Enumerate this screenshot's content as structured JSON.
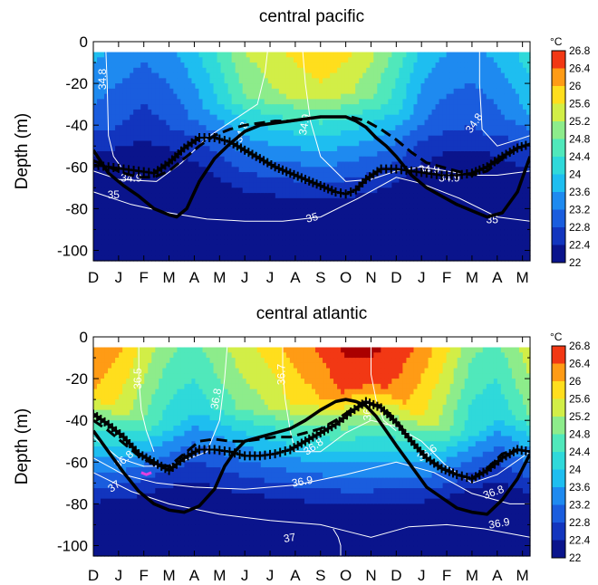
{
  "chart_data": [
    {
      "type": "heatmap",
      "title": "central pacific",
      "ylabel": "Depth (m)",
      "xlabel": "",
      "x_ticks": [
        "D",
        "J",
        "F",
        "M",
        "A",
        "M",
        "J",
        "J",
        "A",
        "S",
        "O",
        "N",
        "D",
        "J",
        "F",
        "M",
        "A",
        "M"
      ],
      "y_ticks": [
        "0",
        "-20",
        "-40",
        "-60",
        "-80",
        "-100"
      ],
      "ylim": [
        -105,
        0
      ],
      "colorbar": {
        "unit": "°C",
        "levels": [
          "26.8",
          "26.4",
          "26",
          "25.6",
          "25.2",
          "24.8",
          "24.4",
          "24",
          "23.6",
          "23.2",
          "22.8",
          "22.4",
          "22"
        ]
      },
      "temperature_profile": {
        "months": [
          0,
          1,
          2,
          3,
          4,
          5,
          6,
          7,
          8,
          9,
          10,
          11,
          12,
          13,
          14,
          15,
          16,
          17
        ],
        "surface_temp": [
          23.8,
          23.6,
          23.4,
          23.6,
          24.0,
          24.6,
          25.3,
          25.6,
          25.8,
          26.0,
          25.8,
          25.4,
          24.8,
          24.0,
          23.7,
          23.6,
          23.8,
          24.2
        ],
        "bottom_temp": 22.0
      },
      "isohalines": [
        {
          "label": "34.8",
          "x": [
            0.5,
            0.55,
            0.6,
            0.8,
            1.1
          ],
          "y": [
            -5,
            -20,
            -45,
            -55,
            -60
          ]
        },
        {
          "label": "34.8",
          "x": [
            15.3,
            15.3,
            15.4,
            16.0,
            16.8,
            17.3
          ],
          "y": [
            -5,
            -20,
            -42,
            -50,
            -47,
            -45
          ]
        },
        {
          "label": "34.9",
          "x": [
            0,
            1.0,
            2.5,
            3.5,
            4.5,
            5.5,
            6.5,
            6.8,
            6.9
          ],
          "y": [
            -62,
            -66,
            -67,
            -58,
            -46,
            -38,
            -30,
            -15,
            -5
          ]
        },
        {
          "label": "34.9",
          "x": [
            8.3,
            8.4,
            8.6,
            9.0,
            10.0,
            11.0,
            12.0,
            13.0,
            14.0,
            15.0,
            16.0,
            17.3
          ],
          "y": [
            -5,
            -20,
            -38,
            -55,
            -67,
            -66,
            -62,
            -60,
            -62,
            -64,
            -64,
            -62
          ]
        },
        {
          "label": "35",
          "x": [
            0,
            1.5,
            3.0,
            4.5,
            6.0,
            7.5,
            9.0,
            10.5,
            12.0,
            13.0,
            14.5,
            16.0,
            17.3
          ],
          "y": [
            -72,
            -78,
            -82,
            -85,
            -86,
            -86,
            -84,
            -75,
            -65,
            -68,
            -75,
            -84,
            -86
          ]
        }
      ],
      "series": [
        {
          "name": "",
          "style": "solid",
          "x": [
            0,
            0.6,
            1.2,
            1.8,
            2.4,
            3.0,
            3.3,
            3.7,
            4.2,
            4.8,
            5.4,
            6.0,
            6.6,
            7.2,
            7.8,
            8.4,
            9.0,
            9.6,
            10.0,
            10.4,
            10.8,
            11.2,
            11.6,
            12.0,
            12.6,
            13.2,
            13.8,
            14.4,
            15.0,
            15.6,
            16.2,
            16.8,
            17.3
          ],
          "y": [
            -52,
            -63,
            -69,
            -74,
            -80,
            -83,
            -84,
            -80,
            -67,
            -56,
            -49,
            -43,
            -40,
            -39,
            -38,
            -37,
            -36,
            -36,
            -36,
            -38,
            -41,
            -46,
            -50,
            -55,
            -64,
            -70,
            -74,
            -78,
            -81,
            -84,
            -82,
            -72,
            -55
          ]
        },
        {
          "name": "",
          "style": "dashed",
          "x": [
            0,
            0.6,
            1.2,
            1.8,
            2.4,
            3.0,
            3.6,
            4.2,
            4.8,
            5.4,
            6.0,
            6.6,
            7.2,
            7.8,
            8.4,
            9.0,
            9.6,
            10.2,
            10.8,
            11.4,
            12.0,
            12.6,
            13.2,
            13.8,
            14.4,
            15.0,
            15.6,
            16.2,
            16.8,
            17.3
          ],
          "y": [
            -57,
            -60,
            -63,
            -65,
            -65,
            -62,
            -56,
            -50,
            -45,
            -42,
            -40,
            -39,
            -38,
            -38,
            -37,
            -36,
            -36,
            -36,
            -38,
            -42,
            -47,
            -53,
            -58,
            -60,
            -62,
            -64,
            -62,
            -56,
            -51,
            -49
          ]
        },
        {
          "name": "",
          "style": "crosses",
          "x": [
            0,
            0.6,
            1.2,
            1.8,
            2.4,
            3.0,
            3.6,
            4.2,
            4.8,
            5.4,
            6.0,
            6.6,
            7.2,
            7.8,
            8.4,
            9.0,
            9.6,
            10.0,
            10.4,
            10.8,
            11.4,
            12.0,
            12.6,
            13.2,
            13.8,
            14.4,
            15.0,
            15.6,
            16.2,
            16.8,
            17.3
          ],
          "y": [
            -59,
            -60,
            -61,
            -62,
            -63,
            -58,
            -51,
            -46,
            -46,
            -48,
            -52,
            -56,
            -60,
            -63,
            -66,
            -69,
            -72,
            -73,
            -71,
            -66,
            -61,
            -61,
            -62,
            -63,
            -64,
            -64,
            -63,
            -60,
            -55,
            -51,
            -49
          ]
        }
      ],
      "isohaline_labels": [
        {
          "text": "34.8",
          "x": 0.5,
          "y": -18,
          "rot": -90
        },
        {
          "text": "34.8",
          "x": 6.0,
          "y": -44,
          "rot": -70
        },
        {
          "text": "34.8",
          "x": 15.2,
          "y": -40,
          "rot": -55
        },
        {
          "text": "34.9",
          "x": 8.5,
          "y": -40,
          "rot": -80
        },
        {
          "text": "34.9",
          "x": 13.3,
          "y": -63,
          "rot": 0
        },
        {
          "text": "34.9",
          "x": 14.1,
          "y": -67,
          "rot": 0
        },
        {
          "text": "34.9",
          "x": 1.5,
          "y": -67,
          "rot": 0
        },
        {
          "text": "35",
          "x": 0.8,
          "y": -75,
          "rot": 0
        },
        {
          "text": "35",
          "x": 8.7,
          "y": -86,
          "rot": -15
        },
        {
          "text": "35",
          "x": 15.8,
          "y": -87,
          "rot": 0
        }
      ]
    },
    {
      "type": "heatmap",
      "title": "central atlantic",
      "ylabel": "Depth (m)",
      "xlabel": "",
      "x_ticks": [
        "D",
        "J",
        "F",
        "M",
        "A",
        "M",
        "J",
        "J",
        "A",
        "S",
        "O",
        "N",
        "D",
        "J",
        "F",
        "M",
        "A",
        "M"
      ],
      "y_ticks": [
        "0",
        "-20",
        "-40",
        "-60",
        "-80",
        "-100"
      ],
      "ylim": [
        -105,
        0
      ],
      "colorbar": {
        "unit": "°C",
        "levels": [
          "26.8",
          "26.4",
          "26",
          "25.6",
          "25.2",
          "24.8",
          "24.4",
          "24",
          "23.6",
          "23.2",
          "22.8",
          "22.4",
          "22"
        ]
      },
      "temperature_profile": {
        "months": [
          0,
          1,
          2,
          3,
          4,
          5,
          6,
          7,
          8,
          9,
          10,
          11,
          12,
          13,
          14,
          15,
          16,
          17
        ],
        "surface_temp": [
          26.5,
          26.2,
          25.6,
          25.0,
          24.8,
          25.2,
          25.6,
          25.9,
          26.3,
          26.6,
          27.0,
          27.0,
          26.8,
          26.4,
          25.8,
          25.0,
          24.8,
          25.4
        ],
        "bottom_temp": 22.1
      },
      "isohalines": [
        {
          "label": "36.5",
          "x": [
            1.8,
            1.8,
            1.9,
            2.1,
            2.4
          ],
          "y": [
            -5,
            -20,
            -35,
            -45,
            -55
          ]
        },
        {
          "label": "36.6",
          "x": [
            11.0,
            11.0,
            11.2,
            11.5,
            12.0
          ],
          "y": [
            -5,
            -18,
            -30,
            -40,
            -45
          ]
        },
        {
          "label": "36.7",
          "x": [
            7.5,
            7.5,
            7.6,
            7.8,
            8.0
          ],
          "y": [
            -5,
            -15,
            -30,
            -45,
            -55
          ]
        },
        {
          "label": "36.8",
          "x": [
            0,
            1.0,
            2.0,
            3.0,
            4.5,
            5.0,
            5.2,
            5.3
          ],
          "y": [
            -48,
            -58,
            -62,
            -62,
            -55,
            -40,
            -20,
            -5
          ]
        },
        {
          "label": "36.8",
          "x": [
            8.0,
            9.0,
            10.0,
            11.0,
            12.0,
            13.0,
            14.0,
            15.0,
            16.0,
            17.3
          ],
          "y": [
            -55,
            -55,
            -46,
            -40,
            -43,
            -50,
            -62,
            -70,
            -66,
            -55
          ]
        },
        {
          "label": "36.9",
          "x": [
            0,
            1.2,
            2.5,
            4.0,
            6.0,
            8.0,
            10.0,
            12.0,
            13.5,
            15.0,
            16.5,
            17.3
          ],
          "y": [
            -58,
            -66,
            -70,
            -72,
            -73,
            -71,
            -66,
            -60,
            -65,
            -75,
            -80,
            -80
          ]
        },
        {
          "label": "37",
          "x": [
            0,
            1.5,
            3.0,
            5.0,
            7.0,
            9.0,
            10.0,
            11.0,
            12.5,
            14.0,
            15.5,
            17.3
          ],
          "y": [
            -65,
            -74,
            -80,
            -85,
            -88,
            -90,
            -93,
            -96,
            -91,
            -90,
            -92,
            -96
          ]
        },
        {
          "label": "37",
          "x": [
            9.5,
            9.7,
            9.8,
            9.8
          ],
          "y": [
            -92,
            -96,
            -100,
            -105
          ]
        }
      ],
      "series": [
        {
          "name": "",
          "style": "solid",
          "x": [
            0,
            0.6,
            1.2,
            1.8,
            2.4,
            3.0,
            3.6,
            4.2,
            4.8,
            5.2,
            5.6,
            6.0,
            6.6,
            7.2,
            7.8,
            8.4,
            9.0,
            9.6,
            10.0,
            10.4,
            10.8,
            11.2,
            11.6,
            12.0,
            12.6,
            13.2,
            13.8,
            14.4,
            15.0,
            15.6,
            16.2,
            16.8,
            17.3
          ],
          "y": [
            -45,
            -55,
            -65,
            -74,
            -80,
            -83,
            -84,
            -81,
            -73,
            -62,
            -55,
            -50,
            -48,
            -46,
            -44,
            -40,
            -35,
            -31,
            -30,
            -31,
            -33,
            -38,
            -45,
            -52,
            -62,
            -72,
            -77,
            -82,
            -84,
            -85,
            -78,
            -68,
            -56
          ]
        },
        {
          "name": "",
          "style": "dashed",
          "x": [
            0,
            0.6,
            1.2,
            1.8,
            2.4,
            3.0,
            3.6,
            4.2,
            4.8,
            5.4,
            6.0,
            6.6,
            7.2,
            7.8,
            8.4,
            9.0,
            9.6,
            10.2,
            10.8,
            11.4,
            12.0,
            12.6,
            13.2,
            13.8,
            14.4,
            15.0,
            15.6,
            16.2,
            16.8,
            17.3
          ],
          "y": [
            -40,
            -45,
            -51,
            -57,
            -61,
            -62,
            -56,
            -50,
            -49,
            -50,
            -50,
            -49,
            -48,
            -48,
            -46,
            -44,
            -40,
            -35,
            -32,
            -33,
            -40,
            -50,
            -58,
            -63,
            -66,
            -68,
            -63,
            -56,
            -54,
            -55
          ]
        },
        {
          "name": "",
          "style": "crosses",
          "x": [
            0,
            0.6,
            1.2,
            1.8,
            2.4,
            3.0,
            3.6,
            4.2,
            4.8,
            5.4,
            6.0,
            6.6,
            7.2,
            7.8,
            8.4,
            9.0,
            9.6,
            10.2,
            10.8,
            11.4,
            12.0,
            12.6,
            13.2,
            13.8,
            14.4,
            15.0,
            15.6,
            16.2,
            16.8,
            17.3
          ],
          "y": [
            -37,
            -42,
            -48,
            -56,
            -60,
            -64,
            -58,
            -54,
            -54,
            -55,
            -57,
            -57,
            -56,
            -54,
            -50,
            -46,
            -42,
            -36,
            -31,
            -34,
            -41,
            -50,
            -58,
            -63,
            -66,
            -68,
            -64,
            -58,
            -54,
            -55
          ]
        }
      ],
      "highlight": {
        "x": [
          1.9,
          2.1,
          2.3
        ],
        "y": [
          -65,
          -66,
          -65
        ],
        "color": "#e040e0"
      },
      "isohaline_labels": [
        {
          "text": "36.5",
          "x": 1.9,
          "y": -20,
          "rot": -90
        },
        {
          "text": "36.6",
          "x": 11.0,
          "y": -35,
          "rot": -90
        },
        {
          "text": "36.6",
          "x": 13.3,
          "y": -57,
          "rot": -35
        },
        {
          "text": "36.7",
          "x": 7.6,
          "y": -18,
          "rot": -90
        },
        {
          "text": "36.8",
          "x": 5.0,
          "y": -30,
          "rot": -80
        },
        {
          "text": "36.8",
          "x": 8.8,
          "y": -54,
          "rot": -35
        },
        {
          "text": "36.8",
          "x": 15.9,
          "y": -76,
          "rot": -20
        },
        {
          "text": "36.9",
          "x": 8.3,
          "y": -71,
          "rot": -10
        },
        {
          "text": "36.9",
          "x": 16.1,
          "y": -91,
          "rot": -10
        },
        {
          "text": "36.8",
          "x": 1.3,
          "y": -60,
          "rot": -40
        },
        {
          "text": "37",
          "x": 0.9,
          "y": -73,
          "rot": -35
        },
        {
          "text": "37",
          "x": 7.8,
          "y": -98,
          "rot": -10
        }
      ]
    }
  ]
}
